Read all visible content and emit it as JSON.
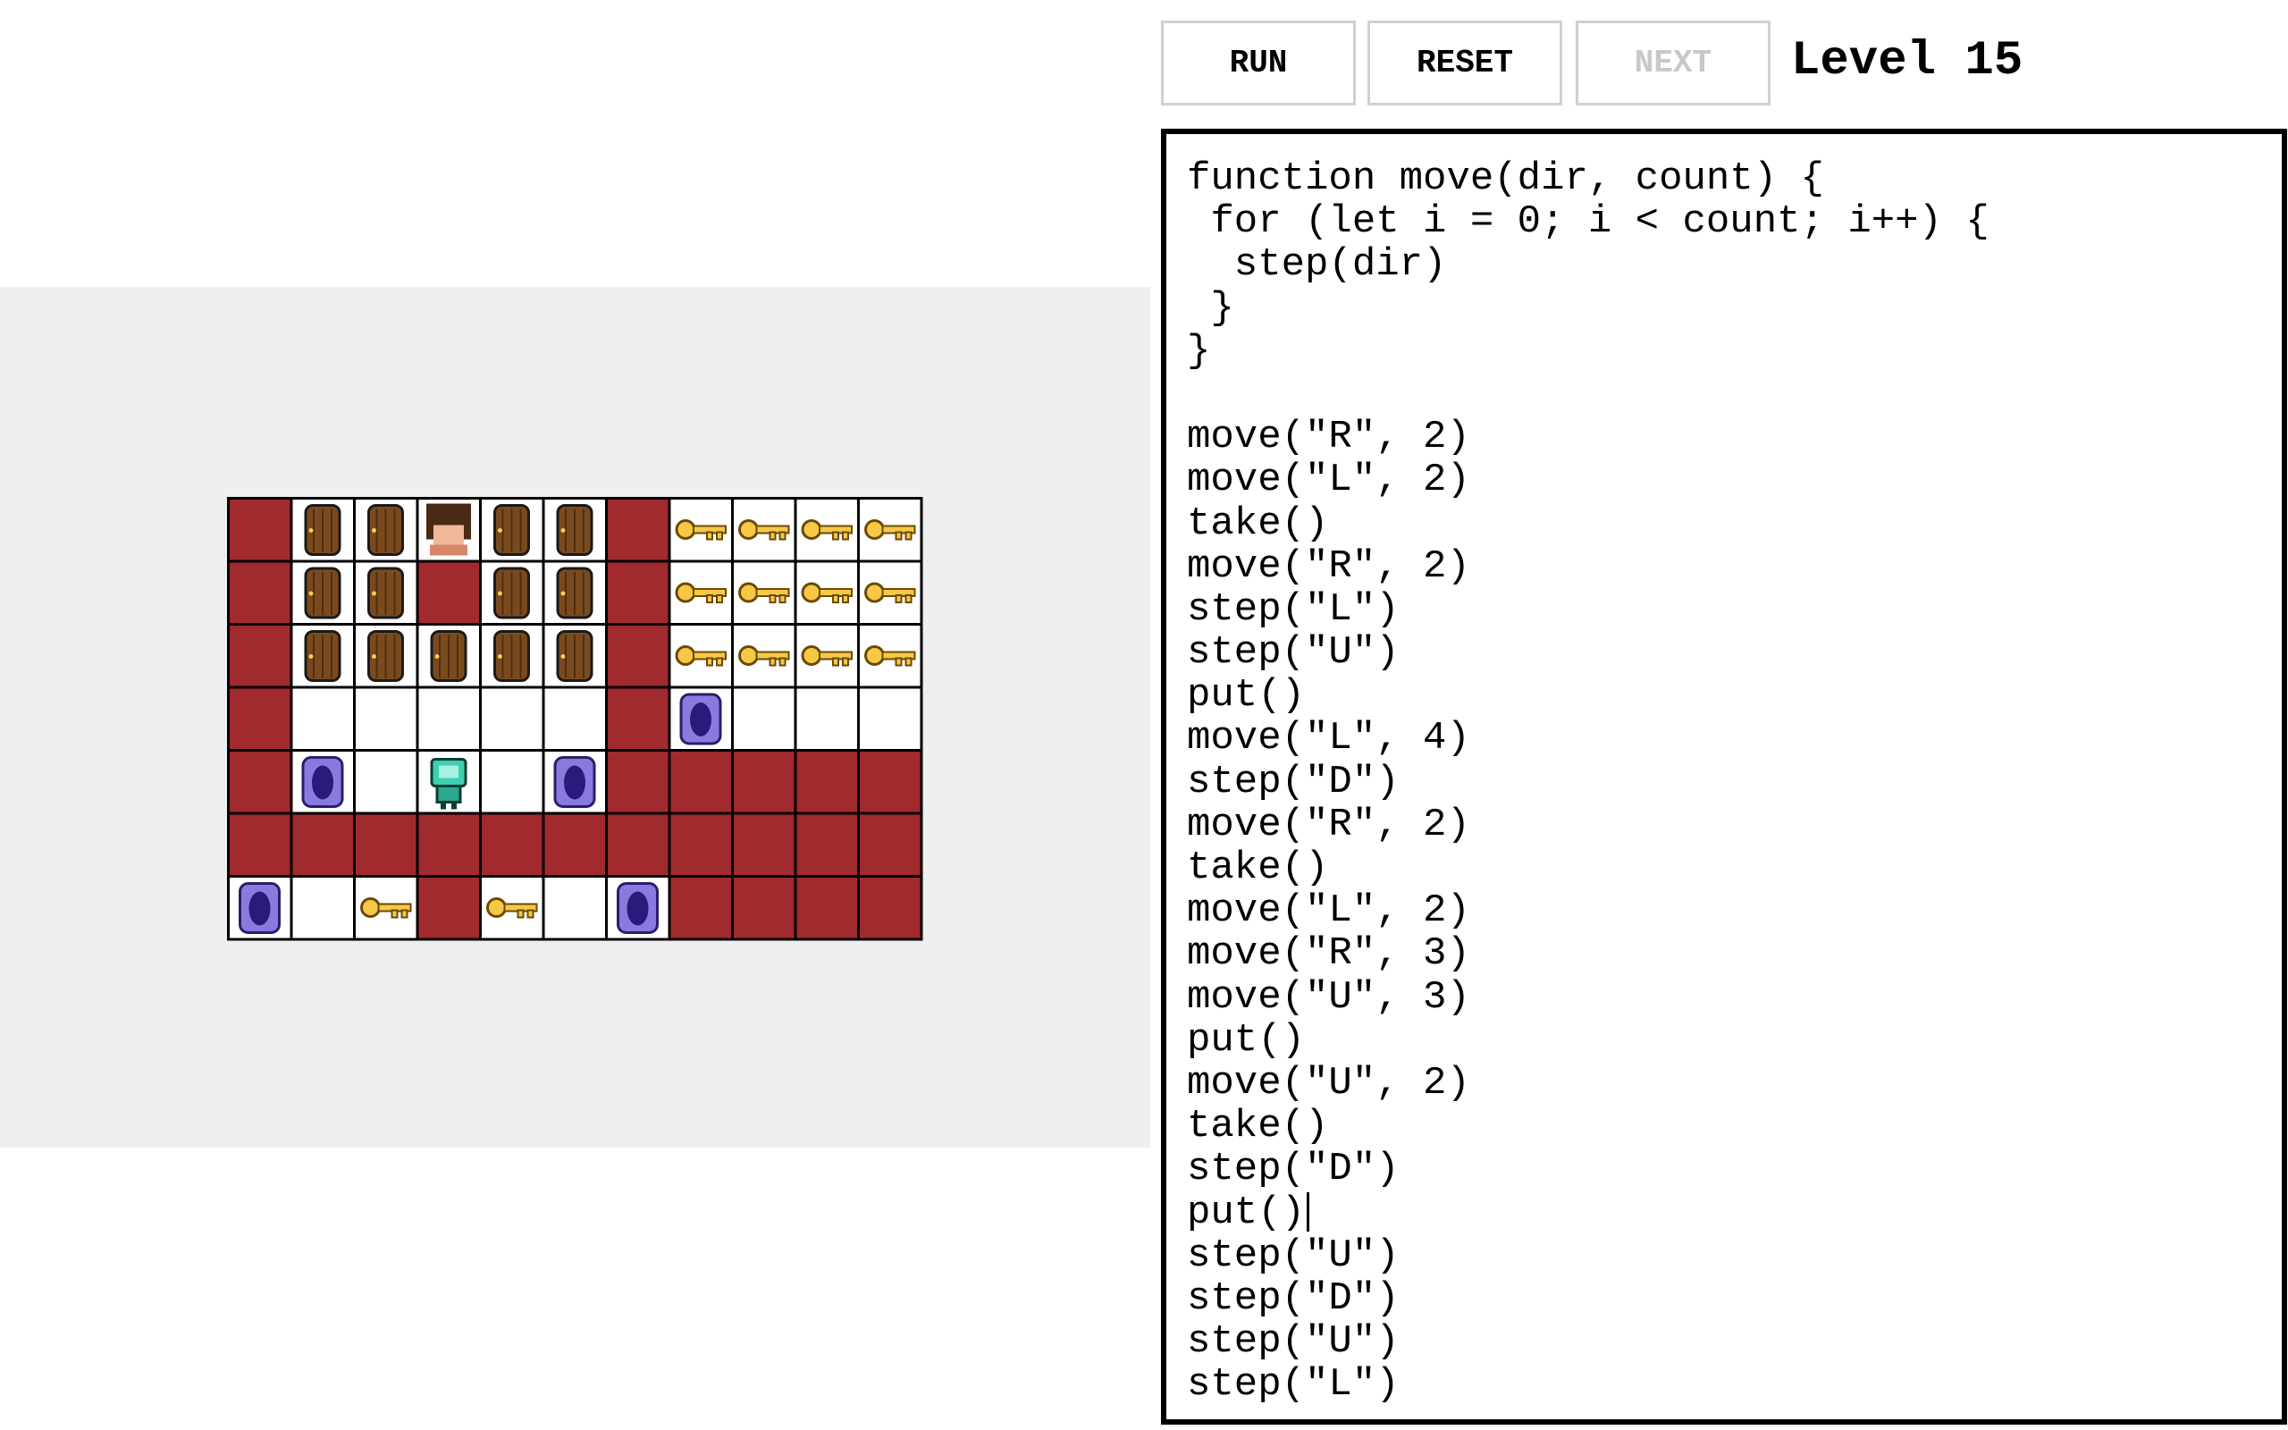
{
  "buttons": [
    "RUN",
    "RESET",
    "NEXT"
  ],
  "level": "Level 15",
  "code": {
    "function": [
      "function move(dir, count) {",
      " for (let i = 0; i < count; i++) {",
      "  step(dir)",
      " }",
      "}"
    ],
    "calls": [
      "move(\"R\", 2)",
      "move(\"L\", 2)",
      "take()",
      "move(\"R\", 2)",
      "step(\"L\")",
      "step(\"U\")",
      "put()",
      "move(\"L\", 4)",
      "step(\"D\")",
      "move(\"R\", 2)",
      "take()",
      "move(\"L\", 2)",
      "move(\"R\", 3)",
      "move(\"U\", 3)",
      "put()",
      "move(\"U\", 2)",
      "take()",
      "step(\"D\")",
      "put()",
      "step(\"U\")",
      "step(\"D\")",
      "step(\"U\")",
      "step(\"L\")"
    ]
  }
}
